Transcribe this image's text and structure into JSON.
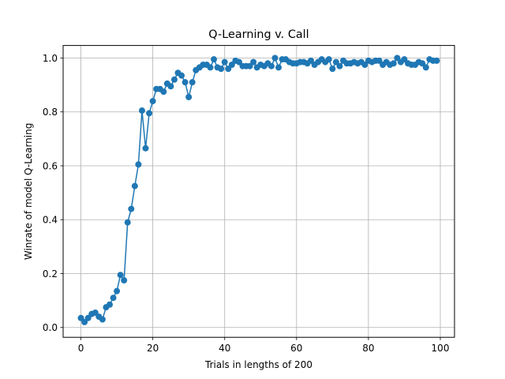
{
  "chart_data": {
    "type": "line",
    "title": "Q-Learning v. Call",
    "xlabel": "Trials in lengths of 200",
    "ylabel": "Winrate of model Q-Learning",
    "xlim": [
      -4.95,
      103.95
    ],
    "ylim": [
      -0.0365,
      1.0465
    ],
    "xticks": [
      0,
      20,
      40,
      60,
      80,
      100
    ],
    "yticks": [
      0.0,
      0.2,
      0.4,
      0.6,
      0.8,
      1.0
    ],
    "xtick_labels": [
      "0",
      "20",
      "40",
      "60",
      "80",
      "100"
    ],
    "ytick_labels": [
      "0.0",
      "0.2",
      "0.4",
      "0.6",
      "0.8",
      "1.0"
    ],
    "grid": true,
    "marker": "circle",
    "line_color": "#1f77b4",
    "series": [
      {
        "x": [
          0,
          1,
          2,
          3,
          4,
          5,
          6,
          7,
          8,
          9,
          10,
          11,
          12,
          13,
          14,
          15,
          16,
          17,
          18,
          19,
          20,
          21,
          22,
          23,
          24,
          25,
          26,
          27,
          28,
          29,
          30,
          31,
          32,
          33,
          34,
          35,
          36,
          37,
          38,
          39,
          40,
          41,
          42,
          43,
          44,
          45,
          46,
          47,
          48,
          49,
          50,
          51,
          52,
          53,
          54,
          55,
          56,
          57,
          58,
          59,
          60,
          61,
          62,
          63,
          64,
          65,
          66,
          67,
          68,
          69,
          70,
          71,
          72,
          73,
          74,
          75,
          76,
          77,
          78,
          79,
          80,
          81,
          82,
          83,
          84,
          85,
          86,
          87,
          88,
          89,
          90,
          91,
          92,
          93,
          94,
          95,
          96,
          97,
          98,
          99
        ],
        "values": [
          0.035,
          0.02,
          0.035,
          0.05,
          0.055,
          0.04,
          0.03,
          0.075,
          0.085,
          0.11,
          0.135,
          0.195,
          0.175,
          0.39,
          0.44,
          0.525,
          0.605,
          0.805,
          0.665,
          0.795,
          0.84,
          0.885,
          0.885,
          0.875,
          0.905,
          0.895,
          0.92,
          0.945,
          0.935,
          0.91,
          0.855,
          0.91,
          0.955,
          0.965,
          0.975,
          0.975,
          0.965,
          0.995,
          0.965,
          0.96,
          0.985,
          0.96,
          0.975,
          0.99,
          0.985,
          0.97,
          0.97,
          0.97,
          0.985,
          0.965,
          0.975,
          0.97,
          0.98,
          0.97,
          1.0,
          0.965,
          0.995,
          0.995,
          0.985,
          0.98,
          0.98,
          0.985,
          0.985,
          0.98,
          0.99,
          0.975,
          0.985,
          0.995,
          0.985,
          0.995,
          0.96,
          0.985,
          0.97,
          0.99,
          0.98,
          0.98,
          0.985,
          0.98,
          0.985,
          0.975,
          0.99,
          0.985,
          0.99,
          0.99,
          0.975,
          0.985,
          0.975,
          0.98,
          1.0,
          0.985,
          0.995,
          0.98,
          0.975,
          0.975,
          0.985,
          0.98,
          0.965,
          0.995,
          0.99,
          0.99
        ]
      }
    ]
  }
}
